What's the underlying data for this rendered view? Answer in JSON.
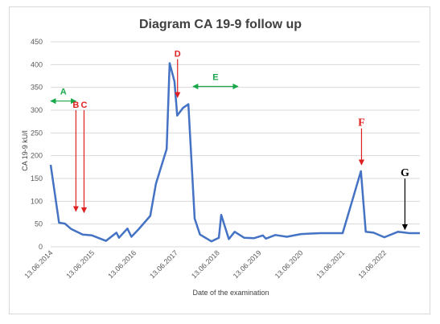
{
  "chart_data": {
    "type": "line",
    "title": "Diagram CA 19-9 follow up",
    "xlabel": "Date of the examination",
    "ylabel": "CA 19-9 kU/l",
    "ylim": [
      0,
      450
    ],
    "yticks": [
      "0",
      "50",
      "100",
      "150",
      "200",
      "250",
      "300",
      "350",
      "400",
      "450"
    ],
    "xticks": [
      "13.06.2014",
      "13.06.2015",
      "13.06.2016",
      "13.06.2017",
      "13.06.2018",
      "13.06.2019",
      "13.06.2020",
      "13.06.2021",
      "13.06.2022"
    ],
    "grid": true,
    "colors": {
      "line": "#4472c4",
      "grid": "#d9d9d9",
      "annotation_red": "#e02020",
      "annotation_green": "#18a84a",
      "annotation_black": "#000000"
    },
    "series": [
      {
        "x": [
          "2014-06-13",
          "2014-08-25",
          "2014-10-15",
          "2014-12-10",
          "2015-03-20",
          "2015-06-10",
          "2015-10-10",
          "2016-01-10",
          "2016-02-01",
          "2016-04-15",
          "2016-05-20",
          "2016-07-20",
          "2016-11-01",
          "2016-12-20",
          "2017-03-25",
          "2017-04-20",
          "2017-06-01",
          "2017-06-25",
          "2017-08-15",
          "2017-10-01",
          "2017-10-10",
          "2017-11-25",
          "2018-01-10",
          "2018-04-20",
          "2018-06-25",
          "2018-07-15",
          "2018-09-20",
          "2018-11-10",
          "2019-02-01",
          "2019-05-01",
          "2019-07-15",
          "2019-08-10",
          "2019-11-01",
          "2020-02-10",
          "2020-06-13",
          "2020-12-01",
          "2021-06-13",
          "2021-11-20",
          "2022-01-01",
          "2022-03-10",
          "2022-06-13",
          "2022-10-10",
          "2023-01-20",
          "2023-04-20"
        ],
        "y": [
          180,
          53,
          51,
          39,
          27,
          25,
          13,
          31,
          20,
          40,
          22,
          38,
          68,
          138,
          215,
          403,
          363,
          288,
          305,
          313,
          270,
          62,
          27,
          12,
          20,
          70,
          17,
          33,
          20,
          19,
          25,
          18,
          26,
          22,
          28,
          30,
          30,
          166,
          33,
          31,
          21,
          33,
          30,
          30
        ]
      }
    ],
    "annotations": [
      {
        "label": "A",
        "color": "green",
        "type": "double-arrow",
        "x_from": "2014-06-13",
        "x_to": "2015-01-20",
        "y": 320
      },
      {
        "label": "B",
        "color": "red",
        "type": "down-arrow",
        "x": "2015-01-20",
        "y_from": 300,
        "y_to": 78
      },
      {
        "label": "C",
        "color": "red",
        "type": "down-arrow",
        "x": "2015-04-01",
        "y_from": 300,
        "y_to": 75
      },
      {
        "label": "D",
        "color": "red",
        "type": "down-arrow",
        "x": "2017-06-28",
        "y_from": 412,
        "y_to": 328
      },
      {
        "label": "E",
        "color": "green",
        "type": "double-arrow",
        "x_from": "2017-11-10",
        "x_to": "2018-12-10",
        "y": 352
      },
      {
        "label": "F",
        "color": "red",
        "type": "down-arrow",
        "x": "2021-11-25",
        "y_from": 260,
        "y_to": 180
      },
      {
        "label": "G",
        "color": "black",
        "type": "down-arrow",
        "x": "2022-12-10",
        "y_from": 150,
        "y_to": 38
      }
    ]
  }
}
